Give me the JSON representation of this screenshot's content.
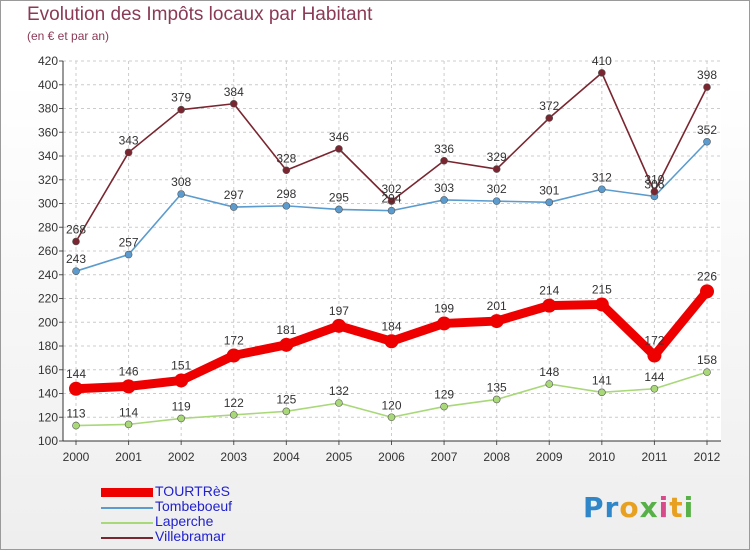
{
  "title": "Evolution des Impôts locaux par Habitant",
  "subtitle": "(en € et par an)",
  "logo": {
    "text": "Proxiti",
    "colors": [
      "#2f86c8",
      "#e8a020",
      "#58b048",
      "#d84a8a"
    ]
  },
  "chart_data": {
    "type": "line",
    "title": "Evolution des Impôts locaux par Habitant",
    "subtitle": "(en € et par an)",
    "xlabel": "",
    "ylabel": "",
    "x": [
      "2000",
      "2001",
      "2002",
      "2003",
      "2004",
      "2005",
      "2006",
      "2007",
      "2008",
      "2009",
      "2010",
      "2011",
      "2012"
    ],
    "ylim": [
      100,
      420
    ],
    "yticks": [
      100,
      120,
      140,
      160,
      180,
      200,
      220,
      240,
      260,
      280,
      300,
      320,
      340,
      360,
      380,
      400,
      420
    ],
    "grid": true,
    "legend_position": "bottom-left",
    "series": [
      {
        "name": "TOURTRèS",
        "color": "#ee0000",
        "label_color": "#2222cc",
        "emphasis": true,
        "values": [
          144,
          146,
          151,
          172,
          181,
          197,
          184,
          199,
          201,
          214,
          215,
          172,
          226
        ]
      },
      {
        "name": "Tombeboeuf",
        "color": "#5b9bcd",
        "label_color": "#2222cc",
        "emphasis": false,
        "values": [
          243,
          257,
          308,
          297,
          298,
          295,
          294,
          303,
          302,
          301,
          312,
          306,
          352
        ]
      },
      {
        "name": "Laperche",
        "color": "#a8d878",
        "label_color": "#2222cc",
        "emphasis": false,
        "values": [
          113,
          114,
          119,
          122,
          125,
          132,
          120,
          129,
          135,
          148,
          141,
          144,
          158
        ]
      },
      {
        "name": "Villebramar",
        "color": "#7a2630",
        "label_color": "#2222cc",
        "emphasis": false,
        "values": [
          268,
          343,
          379,
          384,
          328,
          346,
          302,
          336,
          329,
          372,
          410,
          310,
          398
        ]
      }
    ]
  }
}
